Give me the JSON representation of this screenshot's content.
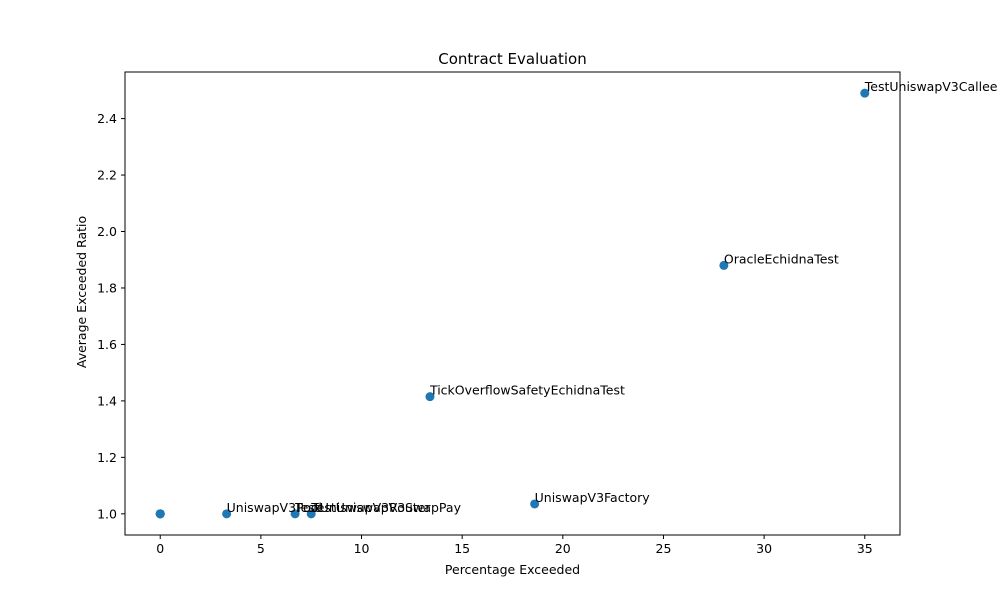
{
  "chart_data": {
    "type": "scatter",
    "title": "Contract Evaluation",
    "xlabel": "Percentage Exceeded",
    "ylabel": "Average Exceeded Ratio",
    "xlim": [
      -1.75,
      36.75
    ],
    "ylim": [
      0.925,
      2.565
    ],
    "xticks": [
      0,
      5,
      10,
      15,
      20,
      25,
      30,
      35
    ],
    "yticks": [
      1.0,
      1.2,
      1.4,
      1.6,
      1.8,
      2.0,
      2.2,
      2.4
    ],
    "ytick_labels": [
      "1.0",
      "1.2",
      "1.4",
      "1.6",
      "1.8",
      "2.0",
      "2.2",
      "2.4"
    ],
    "grid": false,
    "marker_color": "#1f77b4",
    "points": [
      {
        "x": 35.0,
        "y": 2.49,
        "label": "TestUniswapV3Callee"
      },
      {
        "x": 28.0,
        "y": 1.88,
        "label": "OracleEchidnaTest"
      },
      {
        "x": 13.4,
        "y": 1.415,
        "label": "TickOverflowSafetyEchidnaTest"
      },
      {
        "x": 18.6,
        "y": 1.035,
        "label": "UniswapV3Factory"
      },
      {
        "x": 3.3,
        "y": 1.0,
        "label": "UniswapV3Pool"
      },
      {
        "x": 6.7,
        "y": 1.0,
        "label": "TestUniswapV3Router"
      },
      {
        "x": 7.5,
        "y": 1.0,
        "label": "TestUniswapV3SwapPay"
      },
      {
        "x": 0.0,
        "y": 1.0,
        "label": ""
      },
      {
        "x": 0.0,
        "y": 1.0,
        "label": ""
      },
      {
        "x": 0.0,
        "y": 1.0,
        "label": ""
      },
      {
        "x": 0.0,
        "y": 1.0,
        "label": ""
      }
    ]
  }
}
